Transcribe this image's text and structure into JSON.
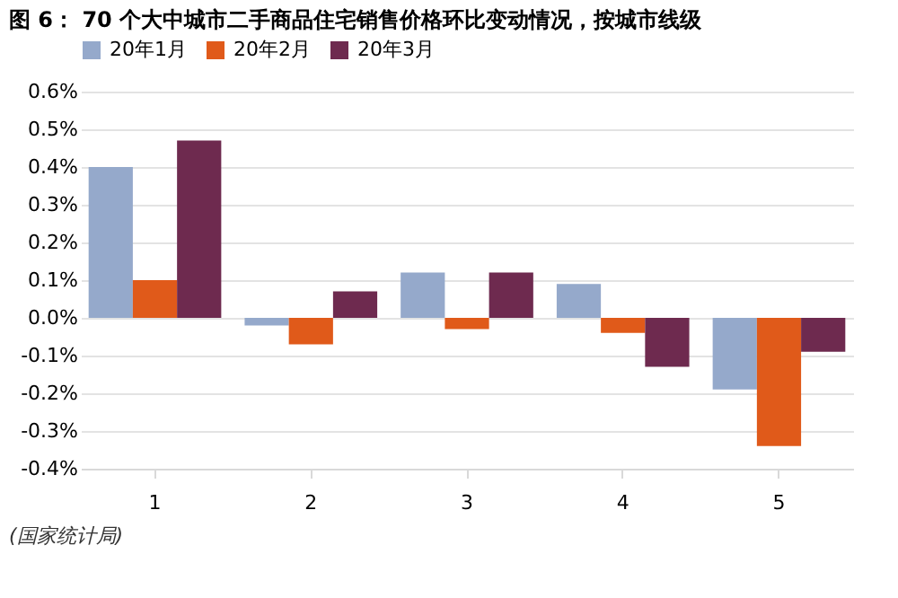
{
  "chart_data": {
    "type": "bar",
    "title": "图 6：  70 个大中城市二手商品住宅销售价格环比变动情况，按城市线级",
    "categories": [
      "1",
      "2",
      "3",
      "4",
      "5"
    ],
    "series": [
      {
        "name": "20年1月",
        "color": "#95a9cb",
        "values": [
          0.4,
          -0.02,
          0.12,
          0.09,
          -0.19
        ]
      },
      {
        "name": "20年2月",
        "color": "#e05a1a",
        "values": [
          0.1,
          -0.07,
          -0.03,
          -0.04,
          -0.34
        ]
      },
      {
        "name": "20年3月",
        "color": "#6e2a4f",
        "values": [
          0.47,
          0.07,
          0.12,
          -0.13,
          -0.09
        ]
      }
    ],
    "ylim": [
      -0.4,
      0.6
    ],
    "yticks": [
      {
        "value": -0.4,
        "label": "-0.4%"
      },
      {
        "value": -0.3,
        "label": "-0.3%"
      },
      {
        "value": -0.2,
        "label": "-0.2%"
      },
      {
        "value": -0.1,
        "label": "-0.1%"
      },
      {
        "value": 0.0,
        "label": "0.0%"
      },
      {
        "value": 0.1,
        "label": "0.1%"
      },
      {
        "value": 0.2,
        "label": "0.2%"
      },
      {
        "value": 0.3,
        "label": "0.3%"
      },
      {
        "value": 0.4,
        "label": "0.4%"
      },
      {
        "value": 0.5,
        "label": "0.5%"
      },
      {
        "value": 0.6,
        "label": "0.6%"
      }
    ],
    "grid": "y",
    "legend": "top",
    "annotations": [
      "(国家统计局)"
    ]
  }
}
